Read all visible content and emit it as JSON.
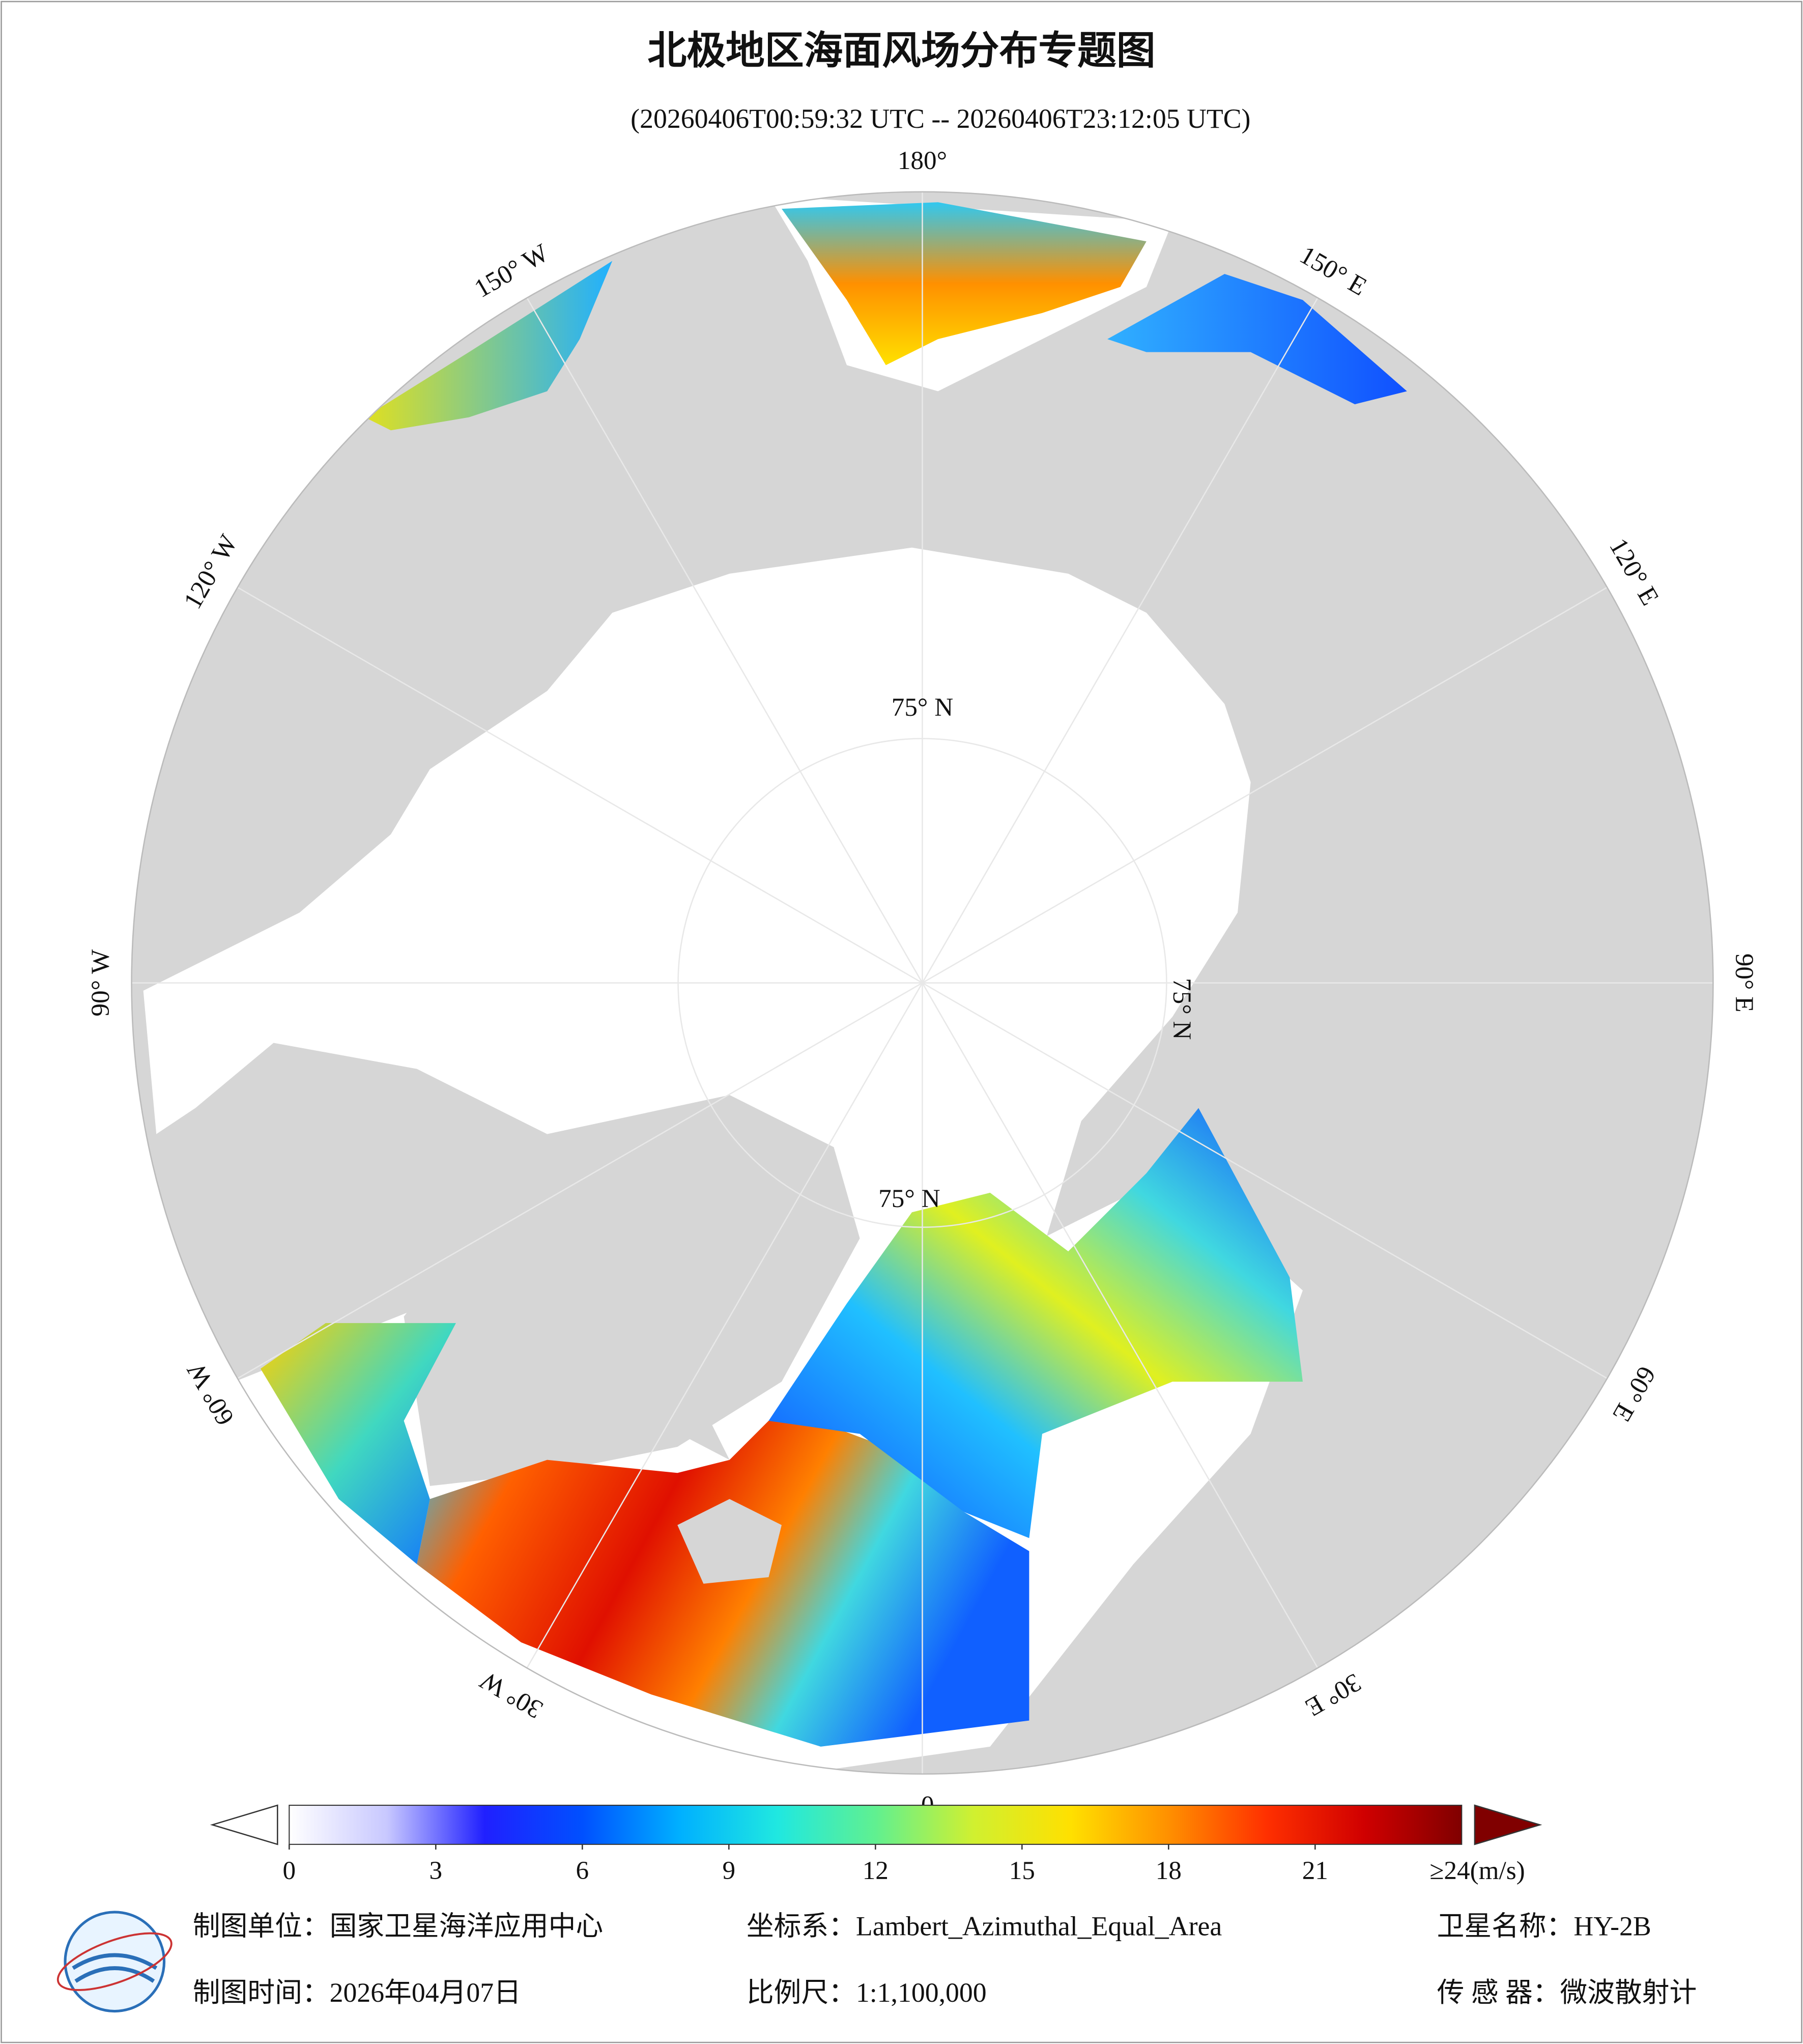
{
  "header": {
    "title": "北极地区海面风场分布专题图",
    "subtitle": "(20260406T00:59:32 UTC -- 20260406T23:12:05 UTC)"
  },
  "map": {
    "lon_labels": [
      {
        "value": 180,
        "label": "180°"
      },
      {
        "value": 150,
        "label": "150° E"
      },
      {
        "value": 120,
        "label": "120° E"
      },
      {
        "value": 90,
        "label": "90° E"
      },
      {
        "value": 60,
        "label": "60° E"
      },
      {
        "value": 30,
        "label": "30° E"
      },
      {
        "value": 0,
        "label": "0°"
      },
      {
        "value": -30,
        "label": "30° W"
      },
      {
        "value": -60,
        "label": "60° W"
      },
      {
        "value": -90,
        "label": "90° W"
      },
      {
        "value": -120,
        "label": "120° W"
      },
      {
        "value": -150,
        "label": "150° W"
      }
    ],
    "lat_circle": {
      "value": 75,
      "label": "75° N"
    }
  },
  "colorbar": {
    "range": [
      0,
      24
    ],
    "ticks": [
      0,
      3,
      6,
      9,
      12,
      15,
      18,
      21
    ],
    "top_label": "≥24(m/s)",
    "colors": [
      "#ffffff",
      "#c8c8ff",
      "#2020ff",
      "#0050ff",
      "#00b0ff",
      "#20e8e0",
      "#60f090",
      "#d0f030",
      "#ffe000",
      "#ff9000",
      "#ff3000",
      "#d00000",
      "#800000"
    ]
  },
  "footer": {
    "unit": "制图单位：国家卫星海洋应用中心",
    "crs": "坐标系：Lambert_Azimuthal_Equal_Area",
    "satellite": "卫星名称：HY-2B",
    "date": "制图时间：2026年04月07日",
    "scale": "比例尺：1:1,100,000",
    "sensor": "传 感 器：微波散射计"
  }
}
